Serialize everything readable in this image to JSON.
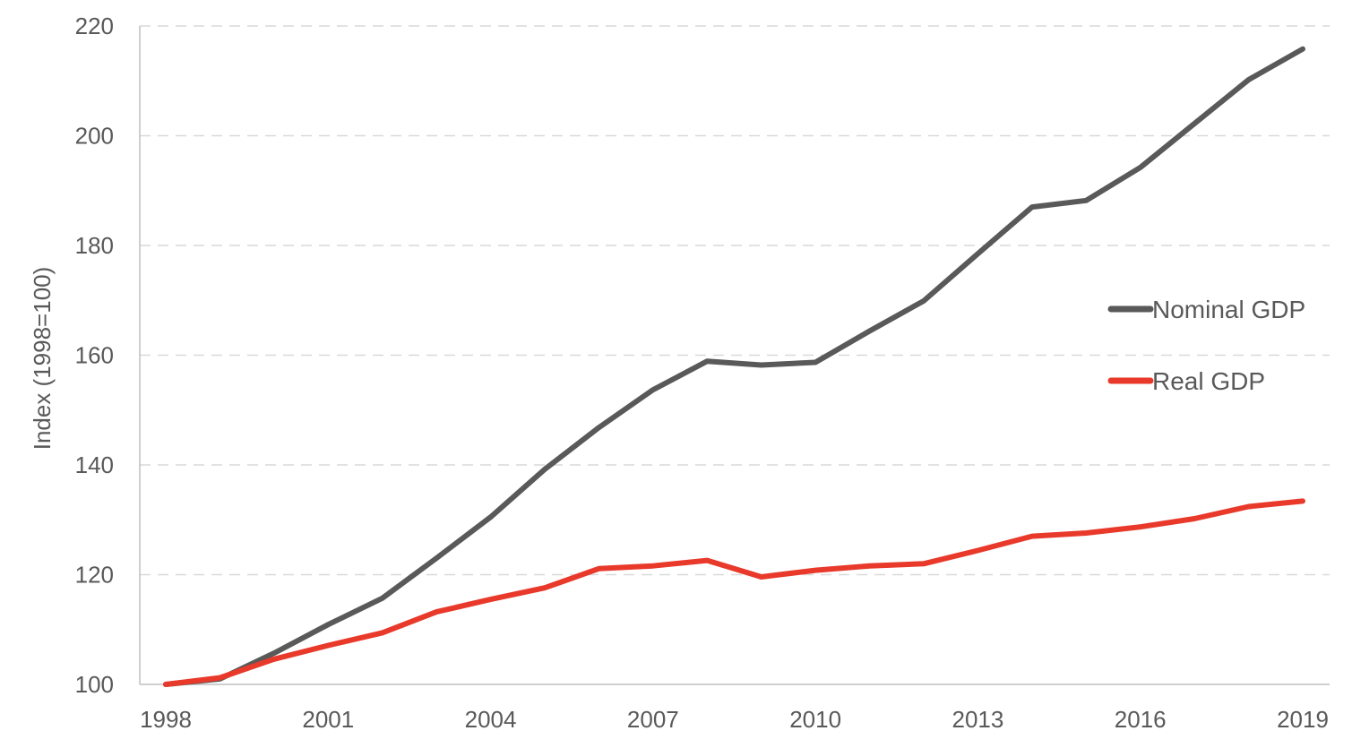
{
  "chart_data": {
    "type": "line",
    "ylabel": "Index (1998=100)",
    "xlabel": "",
    "x": [
      1998,
      1999,
      2000,
      2001,
      2002,
      2003,
      2004,
      2005,
      2006,
      2007,
      2008,
      2009,
      2010,
      2011,
      2012,
      2013,
      2014,
      2015,
      2016,
      2017,
      2018,
      2019
    ],
    "x_ticks": [
      "1998",
      "2001",
      "2004",
      "2007",
      "2010",
      "2013",
      "2016",
      "2019"
    ],
    "y_ticks": [
      "100",
      "120",
      "140",
      "160",
      "180",
      "200",
      "220"
    ],
    "ylim": [
      100,
      220
    ],
    "xlim": [
      1998,
      2019
    ],
    "grid": "horizontal dashed",
    "legend_position": "right",
    "series": [
      {
        "name": "Nominal GDP",
        "color": "#595959",
        "values": [
          100,
          101.0,
          105.7,
          110.9,
          115.7,
          123.0,
          130.5,
          139.2,
          146.8,
          153.7,
          158.9,
          158.2,
          158.7,
          164.4,
          169.9,
          178.5,
          187.0,
          188.2,
          194.2,
          202.2,
          210.2,
          215.8
        ]
      },
      {
        "name": "Real GDP",
        "color": "#e8392b",
        "values": [
          100,
          101.2,
          104.6,
          107.1,
          109.4,
          113.2,
          115.5,
          117.6,
          121.1,
          121.6,
          122.6,
          119.6,
          120.8,
          121.6,
          122.0,
          124.4,
          127.0,
          127.6,
          128.7,
          130.2,
          132.4,
          133.4
        ]
      }
    ]
  }
}
